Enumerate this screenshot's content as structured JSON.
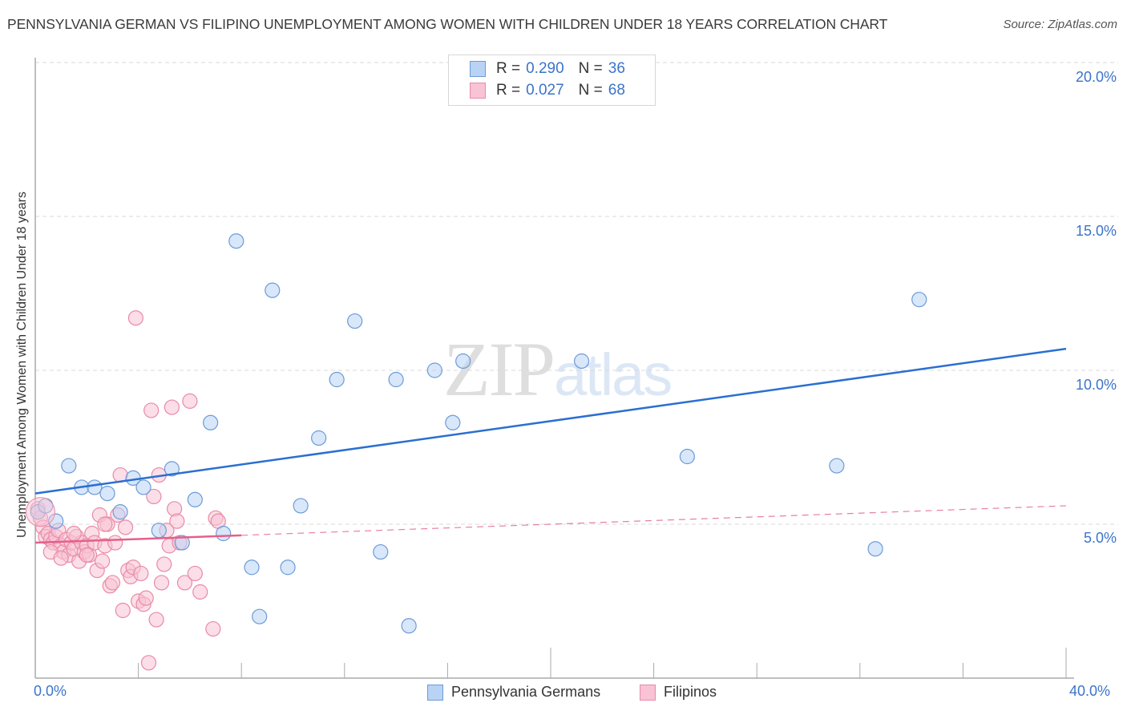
{
  "header": {
    "title": "PENNSYLVANIA GERMAN VS FILIPINO UNEMPLOYMENT AMONG WOMEN WITH CHILDREN UNDER 18 YEARS CORRELATION CHART",
    "source": "Source: ZipAtlas.com"
  },
  "watermark": {
    "zip": "ZIP",
    "atlas": "atlas"
  },
  "colors": {
    "blue_fill": "#b9d3f5",
    "blue_stroke": "#6b9bd8",
    "blue_line": "#2a6fd1",
    "pink_fill": "#f8c3d4",
    "pink_stroke": "#e98aa8",
    "pink_line": "#e4608a",
    "tick_label": "#3b74c9",
    "grid": "#d9d9d9",
    "axis": "#aaaaaa"
  },
  "legend": {
    "rows": [
      {
        "r_label": "R =",
        "r_value": "0.290",
        "n_label": "N =",
        "n_value": "36"
      },
      {
        "r_label": "R =",
        "r_value": "0.027",
        "n_label": "N =",
        "n_value": "68"
      }
    ]
  },
  "bottom_legend": {
    "series_a": "Pennsylvania Germans",
    "series_b": "Filipinos"
  },
  "axes": {
    "y_title": "Unemployment Among Women with Children Under 18 years",
    "y_ticks": [
      "20.0%",
      "15.0%",
      "10.0%",
      "5.0%"
    ],
    "x_min_label": "0.0%",
    "x_max_label": "40.0%"
  },
  "chart_data": {
    "type": "scatter",
    "title": "PENNSYLVANIA GERMAN VS FILIPINO UNEMPLOYMENT AMONG WOMEN WITH CHILDREN UNDER 18 YEARS CORRELATION CHART",
    "xlabel": "",
    "ylabel": "Unemployment Among Women with Children Under 18 years",
    "xlim": [
      0,
      40
    ],
    "ylim": [
      0,
      20
    ],
    "x_ticks": [
      "0.0%",
      "40.0%"
    ],
    "y_ticks": [
      "5.0%",
      "10.0%",
      "15.0%",
      "20.0%"
    ],
    "grid": "horizontal dashed",
    "legend_position": "top-center and bottom",
    "series": [
      {
        "name": "Pennsylvania Germans",
        "R": 0.29,
        "N": 36,
        "trend": {
          "x": [
            0,
            40
          ],
          "y": [
            6.0,
            10.7
          ]
        },
        "points": [
          [
            0.1,
            5.4
          ],
          [
            0.8,
            5.1
          ],
          [
            1.3,
            6.9
          ],
          [
            1.8,
            6.2
          ],
          [
            2.3,
            6.2
          ],
          [
            2.8,
            6.0
          ],
          [
            3.3,
            5.4
          ],
          [
            3.8,
            6.5
          ],
          [
            4.2,
            6.2
          ],
          [
            4.8,
            4.8
          ],
          [
            5.3,
            6.8
          ],
          [
            5.7,
            4.4
          ],
          [
            6.2,
            5.8
          ],
          [
            6.8,
            8.3
          ],
          [
            7.3,
            4.7
          ],
          [
            7.8,
            14.2
          ],
          [
            8.4,
            3.6
          ],
          [
            8.7,
            2.0
          ],
          [
            9.2,
            12.6
          ],
          [
            9.8,
            3.6
          ],
          [
            10.3,
            5.6
          ],
          [
            11.0,
            7.8
          ],
          [
            11.7,
            9.7
          ],
          [
            12.4,
            11.6
          ],
          [
            13.4,
            4.1
          ],
          [
            14.0,
            9.7
          ],
          [
            14.5,
            1.7
          ],
          [
            15.5,
            10.0
          ],
          [
            16.2,
            8.3
          ],
          [
            16.6,
            10.3
          ],
          [
            21.2,
            10.3
          ],
          [
            25.3,
            7.2
          ],
          [
            31.1,
            6.9
          ],
          [
            32.6,
            4.2
          ],
          [
            34.3,
            12.3
          ],
          [
            0.4,
            5.6
          ]
        ]
      },
      {
        "name": "Filipinos",
        "R": 0.027,
        "N": 68,
        "trend": {
          "x": [
            0,
            40
          ],
          "y": [
            4.4,
            5.6
          ],
          "solid_until_x": 8
        },
        "points": [
          [
            0.1,
            5.5
          ],
          [
            0.2,
            5.2
          ],
          [
            0.3,
            4.9
          ],
          [
            0.4,
            4.6
          ],
          [
            0.5,
            4.7
          ],
          [
            0.6,
            4.5
          ],
          [
            0.7,
            4.4
          ],
          [
            0.8,
            4.6
          ],
          [
            0.9,
            4.8
          ],
          [
            1.0,
            4.3
          ],
          [
            1.1,
            4.1
          ],
          [
            1.2,
            4.5
          ],
          [
            1.3,
            4.0
          ],
          [
            1.4,
            4.4
          ],
          [
            1.5,
            4.2
          ],
          [
            1.6,
            4.6
          ],
          [
            1.7,
            3.8
          ],
          [
            1.8,
            4.4
          ],
          [
            1.9,
            4.1
          ],
          [
            2.0,
            4.3
          ],
          [
            2.1,
            4.0
          ],
          [
            2.2,
            4.7
          ],
          [
            2.3,
            4.4
          ],
          [
            2.4,
            3.5
          ],
          [
            2.5,
            5.3
          ],
          [
            2.6,
            3.8
          ],
          [
            2.7,
            4.3
          ],
          [
            2.8,
            5.0
          ],
          [
            2.9,
            3.0
          ],
          [
            3.0,
            3.1
          ],
          [
            3.1,
            4.4
          ],
          [
            3.2,
            5.3
          ],
          [
            3.3,
            6.6
          ],
          [
            3.4,
            2.2
          ],
          [
            3.5,
            4.9
          ],
          [
            3.6,
            3.5
          ],
          [
            3.7,
            3.3
          ],
          [
            3.8,
            3.6
          ],
          [
            3.9,
            11.7
          ],
          [
            4.0,
            2.5
          ],
          [
            4.1,
            3.4
          ],
          [
            4.2,
            2.4
          ],
          [
            4.3,
            2.6
          ],
          [
            4.4,
            0.5
          ],
          [
            4.5,
            8.7
          ],
          [
            4.6,
            5.9
          ],
          [
            4.7,
            1.9
          ],
          [
            4.8,
            6.6
          ],
          [
            4.9,
            3.1
          ],
          [
            5.0,
            3.7
          ],
          [
            5.1,
            4.8
          ],
          [
            5.2,
            4.3
          ],
          [
            5.3,
            8.8
          ],
          [
            5.4,
            5.5
          ],
          [
            5.5,
            5.1
          ],
          [
            5.6,
            4.4
          ],
          [
            5.8,
            3.1
          ],
          [
            6.0,
            9.0
          ],
          [
            6.2,
            3.4
          ],
          [
            6.4,
            2.8
          ],
          [
            6.9,
            1.6
          ],
          [
            7.0,
            5.2
          ],
          [
            7.1,
            5.1
          ],
          [
            0.6,
            4.1
          ],
          [
            1.0,
            3.9
          ],
          [
            1.5,
            4.7
          ],
          [
            2.0,
            4.0
          ],
          [
            2.7,
            5.0
          ]
        ]
      }
    ]
  }
}
